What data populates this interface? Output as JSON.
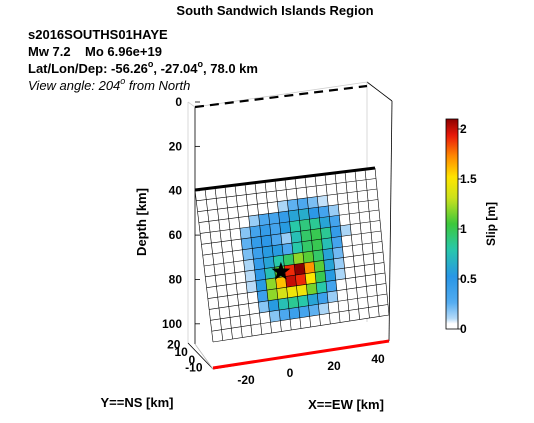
{
  "chart_data": {
    "type": "heatmap",
    "title": "South Sandwich Islands Region",
    "event_id": "s2016SOUTHS01HAYE",
    "magnitude_line": {
      "mw_label": "Mw 7.2",
      "mo_label": "Mo 6.96e+19"
    },
    "location": {
      "prefix": "Lat/Lon/Dep: ",
      "lat": "-56.26",
      "lon": "-27.04",
      "depth_text": ", 78.0 km",
      "degree_mark": "o"
    },
    "view": {
      "prefix": "View angle: ",
      "angle": "204",
      "degree_mark": "o",
      "suffix": " from North"
    },
    "depth_axis": {
      "label": "Depth [km]",
      "ticks": [
        "0",
        "20",
        "40",
        "60",
        "80",
        "100"
      ],
      "range": [
        0,
        110
      ],
      "reversed": true
    },
    "ns_axis": {
      "label": "Y==NS [km]",
      "ticks": [
        "20",
        "10",
        "0",
        "-10"
      ],
      "range": [
        -12,
        22
      ]
    },
    "ew_axis": {
      "label": "X==EW [km]",
      "ticks": [
        "-20",
        "0",
        "20",
        "40"
      ],
      "range": [
        -35,
        45
      ]
    },
    "colorbar": {
      "label": "Slip [m]",
      "ticks": [
        "0",
        "0.5",
        "1",
        "1.5",
        "2"
      ],
      "range": [
        0,
        2.1
      ],
      "colormap": "jet_white_low"
    },
    "fault": {
      "top_depth_km": 40,
      "bottom_depth_km": 102,
      "grid_columns": 18,
      "grid_rows": 14,
      "hypocenter_cell": [
        8,
        8
      ],
      "slip_peak_m": 2.1
    },
    "slip": [
      [
        0,
        0,
        0,
        0,
        0,
        0,
        0,
        0,
        0,
        0,
        0,
        0,
        0,
        0,
        0,
        0,
        0,
        0
      ],
      [
        0,
        0,
        0,
        0,
        0,
        0,
        0,
        0,
        0,
        0,
        0,
        0,
        0,
        0,
        0,
        0,
        0,
        0
      ],
      [
        0,
        0,
        0,
        0,
        0,
        0,
        0,
        0,
        0.12,
        0.25,
        0.3,
        0.2,
        0.08,
        0,
        0,
        0,
        0,
        0
      ],
      [
        0,
        0,
        0,
        0,
        0,
        0.15,
        0.3,
        0.35,
        0.45,
        0.6,
        0.65,
        0.5,
        0.35,
        0.15,
        0,
        0,
        0,
        0
      ],
      [
        0,
        0,
        0,
        0,
        0.18,
        0.35,
        0.45,
        0.35,
        0.55,
        0.8,
        0.9,
        0.85,
        0.6,
        0.35,
        0.05,
        0,
        0,
        0
      ],
      [
        0,
        0,
        0,
        0,
        0.25,
        0.45,
        0.5,
        0.3,
        0.15,
        0.75,
        0.95,
        1.0,
        0.85,
        0.45,
        0.12,
        0,
        0,
        0
      ],
      [
        0,
        0,
        0,
        0,
        0.2,
        0.4,
        0.55,
        0.55,
        0.3,
        0.8,
        0.95,
        1.0,
        0.75,
        0.35,
        0.05,
        0,
        0,
        0
      ],
      [
        0,
        0,
        0,
        0,
        0.12,
        0.45,
        0.6,
        0.8,
        0.95,
        1.2,
        1.1,
        0.95,
        0.6,
        0.22,
        0,
        0,
        0,
        0
      ],
      [
        0,
        0,
        0,
        0,
        0.1,
        0.5,
        0.75,
        1.1,
        1.9,
        2.1,
        1.7,
        1.1,
        0.6,
        0.15,
        0,
        0,
        0,
        0
      ],
      [
        0,
        0,
        0,
        0,
        0.1,
        0.55,
        1.2,
        1.6,
        2.0,
        1.9,
        1.5,
        1.0,
        0.55,
        0.12,
        0,
        0,
        0,
        0
      ],
      [
        0,
        0,
        0,
        0,
        0.05,
        0.4,
        1.2,
        1.35,
        1.45,
        1.45,
        1.15,
        0.8,
        0.35,
        0.05,
        0,
        0,
        0,
        0
      ],
      [
        0,
        0,
        0,
        0,
        0,
        0.18,
        0.55,
        0.75,
        0.85,
        0.8,
        0.6,
        0.4,
        0.15,
        0,
        0,
        0,
        0,
        0
      ],
      [
        0,
        0,
        0,
        0,
        0,
        0.05,
        0.18,
        0.3,
        0.4,
        0.35,
        0.25,
        0.12,
        0,
        0,
        0,
        0,
        0,
        0
      ],
      [
        0,
        0,
        0,
        0,
        0,
        0,
        0,
        0,
        0,
        0,
        0,
        0,
        0,
        0,
        0,
        0,
        0,
        0
      ]
    ]
  }
}
